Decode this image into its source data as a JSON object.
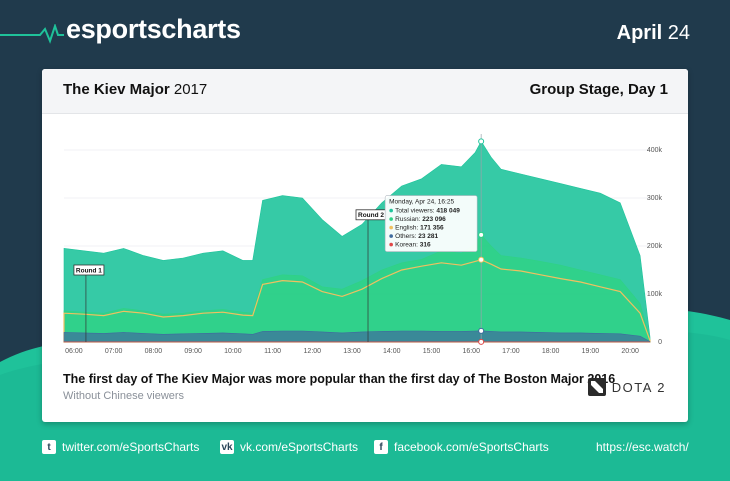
{
  "brand": {
    "name": "esportscharts",
    "date_month": "April",
    "date_day": "24"
  },
  "card": {
    "event_name": "The Kiev Major",
    "event_year": "2017",
    "stage": "Group Stage, Day 1",
    "caption": "The first day of The Kiev Major was more popular than the first day of The Boston Major 2016",
    "subcaption": "Without Chinese viewers",
    "game_logo_text": "DOTA 2"
  },
  "footer": {
    "twitter": "twitter.com/eSportsCharts",
    "vk": "vk.com/eSportsCharts",
    "facebook": "facebook.com/eSportsCharts",
    "site": "https://esc.watch/"
  },
  "colors": {
    "background": "#203a4c",
    "accent": "#1fc29a",
    "total": "#20c49c",
    "russian": "#2fd285",
    "english": "#f0c060",
    "others": "#3f6b9e",
    "korean": "#e04848"
  },
  "chart_data": {
    "type": "area",
    "title": "The Kiev Major 2017 — Group Stage, Day 1",
    "xlabel": "",
    "ylabel": "",
    "x_range": [
      5.75,
      20.5
    ],
    "ylim": [
      0,
      450000
    ],
    "y_ticks": [
      0,
      100000,
      200000,
      300000,
      400000
    ],
    "y_tick_labels": [
      "0",
      "100k",
      "200k",
      "300k",
      "400k"
    ],
    "x_ticks": [
      6,
      7,
      8,
      9,
      10,
      11,
      12,
      13,
      14,
      15,
      16,
      17,
      18,
      19,
      20
    ],
    "x_tick_labels": [
      "06:00",
      "07:00",
      "08:00",
      "09:00",
      "10:00",
      "11:00",
      "12:00",
      "13:00",
      "14:00",
      "15:00",
      "16:00",
      "17:00",
      "18:00",
      "19:00",
      "20:00"
    ],
    "x": [
      5.75,
      6.25,
      6.75,
      7.25,
      7.75,
      8.25,
      8.75,
      9.25,
      9.75,
      10.25,
      10.5,
      10.75,
      11.25,
      11.75,
      12.25,
      12.75,
      13.25,
      13.75,
      14.25,
      14.75,
      15.25,
      15.75,
      16.1,
      16.25,
      16.5,
      16.75,
      17.25,
      17.75,
      18.25,
      18.75,
      19.25,
      19.75,
      20.25,
      20.5
    ],
    "series": [
      {
        "name": "Total viewers",
        "values": [
          195000,
          190000,
          185000,
          195000,
          180000,
          170000,
          175000,
          185000,
          190000,
          170000,
          170000,
          295000,
          305000,
          300000,
          255000,
          220000,
          245000,
          290000,
          325000,
          340000,
          370000,
          365000,
          395000,
          418049,
          385000,
          360000,
          350000,
          340000,
          330000,
          320000,
          310000,
          290000,
          180000,
          10000
        ]
      },
      {
        "name": "Russian",
        "values": [
          65000,
          62000,
          60000,
          70000,
          65000,
          58000,
          60000,
          65000,
          68000,
          62000,
          60000,
          130000,
          140000,
          138000,
          115000,
          110000,
          128000,
          150000,
          165000,
          172000,
          190000,
          185000,
          205000,
          223096,
          200000,
          180000,
          175000,
          168000,
          160000,
          150000,
          140000,
          130000,
          80000,
          5000
        ]
      },
      {
        "name": "English",
        "values": [
          60000,
          58000,
          55000,
          64000,
          60000,
          52000,
          55000,
          60000,
          62000,
          56000,
          55000,
          120000,
          128000,
          125000,
          105000,
          95000,
          110000,
          132000,
          150000,
          158000,
          165000,
          160000,
          168000,
          171356,
          162000,
          152000,
          148000,
          140000,
          132000,
          125000,
          115000,
          105000,
          60000,
          3000
        ]
      },
      {
        "name": "Others",
        "values": [
          20000,
          19000,
          18000,
          20000,
          18000,
          16000,
          17000,
          18000,
          19000,
          17000,
          16000,
          22000,
          23000,
          23000,
          21000,
          19000,
          21000,
          22000,
          23000,
          23000,
          22000,
          22000,
          23000,
          23281,
          22000,
          21000,
          21000,
          20000,
          19000,
          19000,
          18000,
          17000,
          12000,
          1000
        ]
      },
      {
        "name": "Korean",
        "values": [
          200,
          200,
          200,
          200,
          200,
          200,
          200,
          200,
          200,
          200,
          200,
          250,
          250,
          250,
          250,
          250,
          250,
          280,
          300,
          300,
          310,
          310,
          315,
          316,
          310,
          300,
          300,
          290,
          280,
          270,
          260,
          250,
          200,
          50
        ]
      }
    ],
    "annotations": [
      {
        "label": "Round 1",
        "x": 6.0,
        "y": 150000
      },
      {
        "label": "Round 2",
        "x": 13.1,
        "y": 265000
      }
    ],
    "tooltip": {
      "date": "Monday, Apr 24, 16:25",
      "x": 16.25,
      "rows": [
        {
          "label": "Total viewers",
          "value": "418 049"
        },
        {
          "label": "Russian",
          "value": "223 096"
        },
        {
          "label": "English",
          "value": "171 356"
        },
        {
          "label": "Others",
          "value": "23 281"
        },
        {
          "label": "Korean",
          "value": "316"
        }
      ]
    }
  }
}
